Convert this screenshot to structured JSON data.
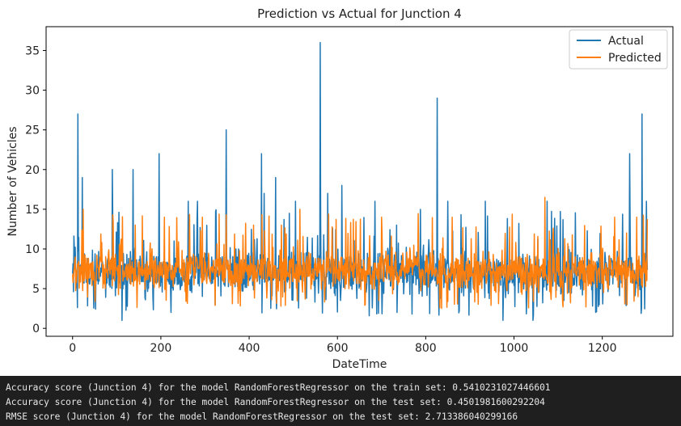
{
  "chart_data": {
    "type": "line",
    "title": "Prediction vs Actual for Junction 4",
    "xlabel": "DateTime",
    "ylabel": "Number of Vehicles",
    "xlim": [
      -60,
      1360
    ],
    "ylim": [
      -1,
      38
    ],
    "xticks": [
      0,
      200,
      400,
      600,
      800,
      1000,
      1200
    ],
    "yticks": [
      0,
      5,
      10,
      15,
      20,
      25,
      30,
      35
    ],
    "legend": {
      "position": "top-right",
      "entries": [
        "Actual",
        "Predicted"
      ]
    },
    "n_points": 1303,
    "seed": 4,
    "series": [
      {
        "name": "Actual",
        "color": "#1f77b4",
        "typical_range": [
          3,
          11
        ],
        "peaks": [
          {
            "x": 12,
            "y": 27
          },
          {
            "x": 22,
            "y": 19
          },
          {
            "x": 90,
            "y": 20
          },
          {
            "x": 137,
            "y": 20
          },
          {
            "x": 196,
            "y": 22
          },
          {
            "x": 262,
            "y": 16
          },
          {
            "x": 283,
            "y": 16
          },
          {
            "x": 348,
            "y": 25
          },
          {
            "x": 428,
            "y": 22
          },
          {
            "x": 434,
            "y": 17
          },
          {
            "x": 460,
            "y": 19
          },
          {
            "x": 505,
            "y": 16
          },
          {
            "x": 561,
            "y": 36
          },
          {
            "x": 578,
            "y": 17
          },
          {
            "x": 610,
            "y": 18
          },
          {
            "x": 685,
            "y": 16
          },
          {
            "x": 826,
            "y": 29
          },
          {
            "x": 850,
            "y": 16
          },
          {
            "x": 935,
            "y": 16
          },
          {
            "x": 1075,
            "y": 16
          },
          {
            "x": 1262,
            "y": 22
          },
          {
            "x": 1290,
            "y": 27
          },
          {
            "x": 1300,
            "y": 16
          }
        ],
        "dips": [
          {
            "x": 112,
            "y": 1
          },
          {
            "x": 223,
            "y": 2
          },
          {
            "x": 735,
            "y": 2
          },
          {
            "x": 975,
            "y": 1
          },
          {
            "x": 1043,
            "y": 1
          },
          {
            "x": 1185,
            "y": 2
          }
        ]
      },
      {
        "name": "Predicted",
        "color": "#ff7f0e",
        "typical_range": [
          4,
          10.5
        ],
        "peaks": [
          {
            "x": 24,
            "y": 15
          },
          {
            "x": 208,
            "y": 14
          },
          {
            "x": 294,
            "y": 14
          },
          {
            "x": 410,
            "y": 13
          },
          {
            "x": 473,
            "y": 13
          },
          {
            "x": 515,
            "y": 15
          },
          {
            "x": 700,
            "y": 14
          },
          {
            "x": 860,
            "y": 14
          },
          {
            "x": 1070,
            "y": 16.5
          },
          {
            "x": 1228,
            "y": 14
          },
          {
            "x": 1278,
            "y": 14
          }
        ],
        "dips": []
      }
    ]
  },
  "console": {
    "lines": [
      "Accuracy score (Junction 4) for the model RandomForestRegressor on the train set: 0.5410231027446601",
      "Accuracy score (Junction 4) for the model RandomForestRegressor on the test set: 0.4501981600292204",
      "RMSE score (Junction 4) for the model RandomForestRegressor on the test set: 2.713386040299166"
    ]
  }
}
